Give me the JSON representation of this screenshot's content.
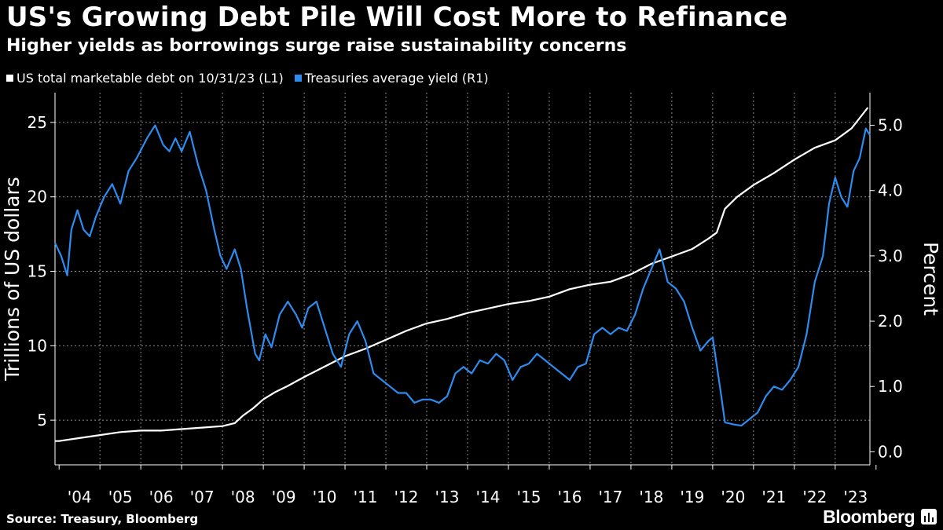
{
  "title": "US's Growing Debt Pile Will Cost More to Refinance",
  "subtitle": "Higher yields as borrowings surge raise sustainability concerns",
  "legend": [
    {
      "label": "US total marketable debt on 10/31/23 (L1)",
      "color": "#ffffff"
    },
    {
      "label": "Treasuries average yield (R1)",
      "color": "#2d8cf0"
    }
  ],
  "source": "Source: Treasury, Bloomberg",
  "brand": "Bloomberg",
  "chart_data": {
    "type": "line",
    "title": "US's Growing Debt Pile Will Cost More to Refinance",
    "x_range": [
      2003.9,
      2023.85
    ],
    "x_tick_labels": [
      "'04",
      "'05",
      "'06",
      "'07",
      "'08",
      "'09",
      "'10",
      "'11",
      "'12",
      "'13",
      "'14",
      "'15",
      "'16",
      "'17",
      "'18",
      "'19",
      "'20",
      "'21",
      "'22",
      "'23"
    ],
    "left_axis": {
      "label": "Trillions of US dollars",
      "ticks": [
        5,
        10,
        15,
        20,
        25
      ],
      "tick_labels": [
        "5",
        "10",
        "15",
        "20",
        "25"
      ],
      "range": [
        2,
        27
      ]
    },
    "right_axis": {
      "label": "Percent",
      "ticks": [
        0,
        1,
        2,
        3,
        4,
        5
      ],
      "tick_labels": [
        "0.0",
        "1.0",
        "2.0",
        "3.0",
        "4.0",
        "5.0"
      ],
      "range": [
        -0.2,
        5.5
      ]
    },
    "grid": true,
    "series": [
      {
        "name": "US total marketable debt on 10/31/23 (L1)",
        "axis": "left",
        "color": "#ffffff",
        "points": [
          [
            2003.9,
            3.6
          ],
          [
            2004.0,
            3.6
          ],
          [
            2004.5,
            3.8
          ],
          [
            2005.0,
            4.0
          ],
          [
            2005.5,
            4.2
          ],
          [
            2006.0,
            4.3
          ],
          [
            2006.5,
            4.3
          ],
          [
            2007.0,
            4.4
          ],
          [
            2007.5,
            4.5
          ],
          [
            2008.0,
            4.6
          ],
          [
            2008.3,
            4.8
          ],
          [
            2008.5,
            5.3
          ],
          [
            2008.75,
            5.8
          ],
          [
            2009.0,
            6.4
          ],
          [
            2009.3,
            6.9
          ],
          [
            2009.6,
            7.3
          ],
          [
            2010.0,
            7.9
          ],
          [
            2010.5,
            8.6
          ],
          [
            2011.0,
            9.3
          ],
          [
            2011.5,
            9.8
          ],
          [
            2012.0,
            10.4
          ],
          [
            2012.5,
            11.0
          ],
          [
            2013.0,
            11.5
          ],
          [
            2013.5,
            11.8
          ],
          [
            2014.0,
            12.2
          ],
          [
            2014.5,
            12.5
          ],
          [
            2015.0,
            12.8
          ],
          [
            2015.5,
            13.0
          ],
          [
            2016.0,
            13.3
          ],
          [
            2016.5,
            13.8
          ],
          [
            2017.0,
            14.1
          ],
          [
            2017.5,
            14.3
          ],
          [
            2018.0,
            14.8
          ],
          [
            2018.5,
            15.5
          ],
          [
            2019.0,
            16.0
          ],
          [
            2019.5,
            16.5
          ],
          [
            2019.9,
            17.2
          ],
          [
            2020.1,
            17.6
          ],
          [
            2020.3,
            19.2
          ],
          [
            2020.6,
            20.0
          ],
          [
            2021.0,
            20.8
          ],
          [
            2021.5,
            21.6
          ],
          [
            2022.0,
            22.5
          ],
          [
            2022.5,
            23.3
          ],
          [
            2023.0,
            23.8
          ],
          [
            2023.4,
            24.6
          ],
          [
            2023.8,
            26.0
          ]
        ]
      },
      {
        "name": "Treasuries average yield (R1)",
        "axis": "right",
        "color": "#2d8cf0",
        "points": [
          [
            2003.9,
            3.2
          ],
          [
            2004.05,
            3.0
          ],
          [
            2004.2,
            2.7
          ],
          [
            2004.3,
            3.4
          ],
          [
            2004.45,
            3.7
          ],
          [
            2004.6,
            3.4
          ],
          [
            2004.75,
            3.3
          ],
          [
            2004.9,
            3.6
          ],
          [
            2005.1,
            3.9
          ],
          [
            2005.3,
            4.1
          ],
          [
            2005.5,
            3.8
          ],
          [
            2005.7,
            4.3
          ],
          [
            2005.9,
            4.5
          ],
          [
            2006.15,
            4.8
          ],
          [
            2006.35,
            5.0
          ],
          [
            2006.55,
            4.7
          ],
          [
            2006.7,
            4.6
          ],
          [
            2006.85,
            4.8
          ],
          [
            2007.0,
            4.6
          ],
          [
            2007.2,
            4.9
          ],
          [
            2007.4,
            4.4
          ],
          [
            2007.6,
            4.0
          ],
          [
            2007.8,
            3.4
          ],
          [
            2007.95,
            3.0
          ],
          [
            2008.1,
            2.8
          ],
          [
            2008.3,
            3.1
          ],
          [
            2008.45,
            2.8
          ],
          [
            2008.6,
            2.2
          ],
          [
            2008.8,
            1.5
          ],
          [
            2008.9,
            1.4
          ],
          [
            2009.05,
            1.8
          ],
          [
            2009.2,
            1.6
          ],
          [
            2009.4,
            2.1
          ],
          [
            2009.6,
            2.3
          ],
          [
            2009.8,
            2.1
          ],
          [
            2009.95,
            1.9
          ],
          [
            2010.1,
            2.2
          ],
          [
            2010.3,
            2.3
          ],
          [
            2010.5,
            1.9
          ],
          [
            2010.7,
            1.5
          ],
          [
            2010.9,
            1.3
          ],
          [
            2011.1,
            1.8
          ],
          [
            2011.3,
            2.0
          ],
          [
            2011.5,
            1.7
          ],
          [
            2011.7,
            1.2
          ],
          [
            2011.9,
            1.1
          ],
          [
            2012.1,
            1.0
          ],
          [
            2012.3,
            0.9
          ],
          [
            2012.5,
            0.9
          ],
          [
            2012.7,
            0.75
          ],
          [
            2012.9,
            0.8
          ],
          [
            2013.1,
            0.8
          ],
          [
            2013.3,
            0.75
          ],
          [
            2013.5,
            0.85
          ],
          [
            2013.7,
            1.2
          ],
          [
            2013.9,
            1.3
          ],
          [
            2014.1,
            1.2
          ],
          [
            2014.3,
            1.4
          ],
          [
            2014.5,
            1.35
          ],
          [
            2014.7,
            1.5
          ],
          [
            2014.9,
            1.4
          ],
          [
            2015.1,
            1.1
          ],
          [
            2015.3,
            1.3
          ],
          [
            2015.5,
            1.35
          ],
          [
            2015.7,
            1.5
          ],
          [
            2015.9,
            1.4
          ],
          [
            2016.1,
            1.3
          ],
          [
            2016.3,
            1.2
          ],
          [
            2016.5,
            1.1
          ],
          [
            2016.7,
            1.3
          ],
          [
            2016.9,
            1.35
          ],
          [
            2017.1,
            1.8
          ],
          [
            2017.3,
            1.9
          ],
          [
            2017.5,
            1.8
          ],
          [
            2017.7,
            1.9
          ],
          [
            2017.9,
            1.85
          ],
          [
            2018.1,
            2.1
          ],
          [
            2018.3,
            2.5
          ],
          [
            2018.5,
            2.8
          ],
          [
            2018.7,
            3.1
          ],
          [
            2018.9,
            2.6
          ],
          [
            2019.1,
            2.5
          ],
          [
            2019.3,
            2.3
          ],
          [
            2019.5,
            1.9
          ],
          [
            2019.7,
            1.55
          ],
          [
            2019.9,
            1.7
          ],
          [
            2020.0,
            1.75
          ],
          [
            2020.2,
            0.9
          ],
          [
            2020.3,
            0.45
          ],
          [
            2020.5,
            0.42
          ],
          [
            2020.7,
            0.4
          ],
          [
            2020.9,
            0.5
          ],
          [
            2021.1,
            0.6
          ],
          [
            2021.3,
            0.85
          ],
          [
            2021.5,
            1.0
          ],
          [
            2021.7,
            0.95
          ],
          [
            2021.9,
            1.1
          ],
          [
            2022.1,
            1.3
          ],
          [
            2022.3,
            1.8
          ],
          [
            2022.5,
            2.6
          ],
          [
            2022.7,
            3.0
          ],
          [
            2022.85,
            3.8
          ],
          [
            2023.0,
            4.2
          ],
          [
            2023.15,
            3.9
          ],
          [
            2023.3,
            3.75
          ],
          [
            2023.45,
            4.3
          ],
          [
            2023.6,
            4.5
          ],
          [
            2023.75,
            4.95
          ],
          [
            2023.85,
            4.85
          ]
        ]
      }
    ]
  }
}
